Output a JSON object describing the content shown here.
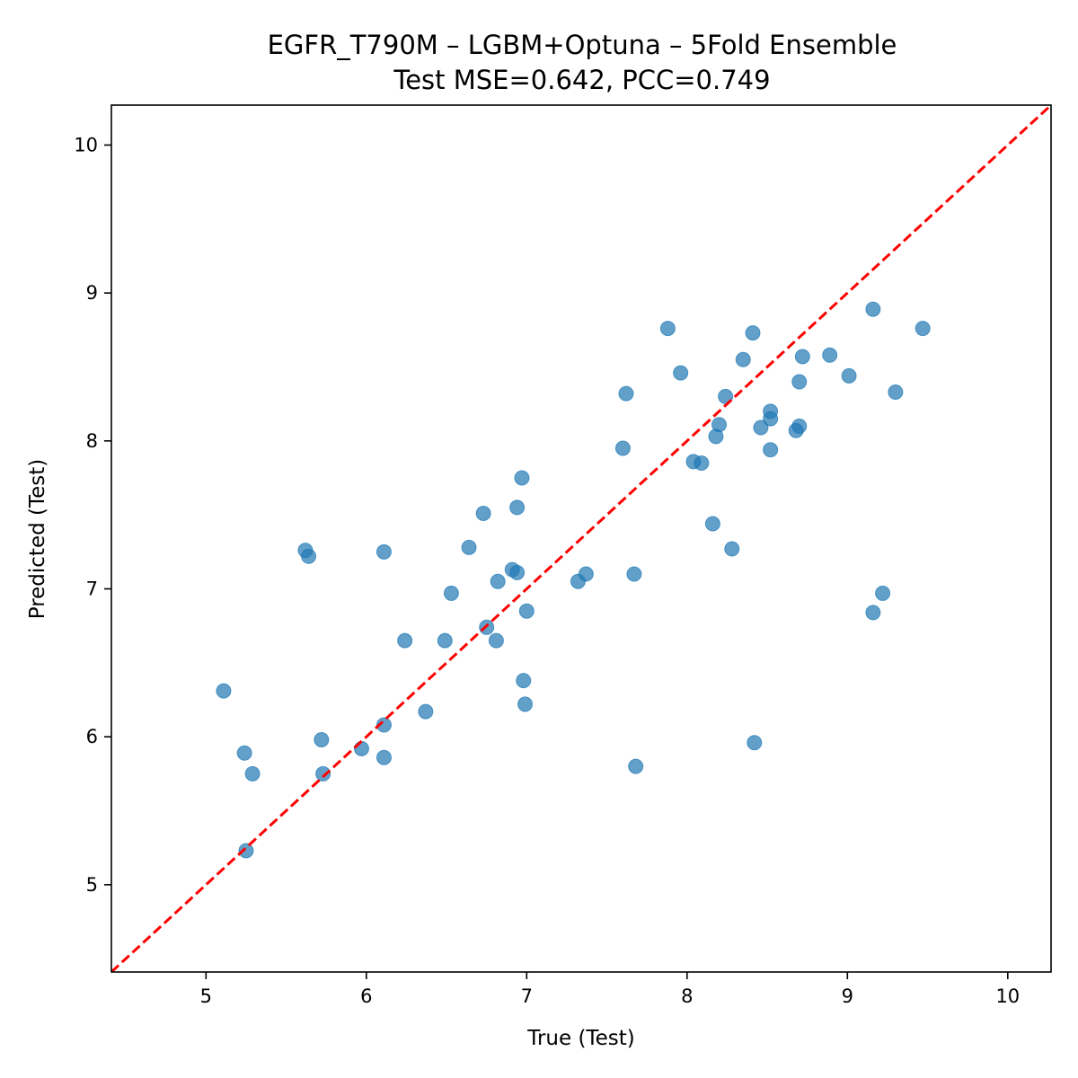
{
  "chart_data": {
    "type": "scatter",
    "title": "EGFR_T790M – LGBM+Optuna – 5Fold Ensemble",
    "subtitle": "Test MSE=0.642, PCC=0.749",
    "xlabel": "True (Test)",
    "ylabel": "Predicted (Test)",
    "xlim": [
      4.41,
      10.27
    ],
    "ylim": [
      4.41,
      10.27
    ],
    "xticks": [
      "5",
      "6",
      "7",
      "8",
      "9",
      "10"
    ],
    "yticks": [
      "5",
      "6",
      "7",
      "8",
      "9",
      "10"
    ],
    "grid": false,
    "point_color": "#1f77b4",
    "reference_line": {
      "style": "dashed",
      "color": "#ff0000",
      "from": [
        4.41,
        4.41
      ],
      "to": [
        10.27,
        10.27
      ]
    },
    "points": [
      {
        "x": 5.11,
        "y": 6.31
      },
      {
        "x": 5.24,
        "y": 5.89
      },
      {
        "x": 5.25,
        "y": 5.23
      },
      {
        "x": 5.29,
        "y": 5.75
      },
      {
        "x": 5.62,
        "y": 7.26
      },
      {
        "x": 5.64,
        "y": 7.22
      },
      {
        "x": 5.72,
        "y": 5.98
      },
      {
        "x": 5.73,
        "y": 5.75
      },
      {
        "x": 5.97,
        "y": 5.92
      },
      {
        "x": 6.11,
        "y": 6.08
      },
      {
        "x": 6.11,
        "y": 5.86
      },
      {
        "x": 6.11,
        "y": 7.25
      },
      {
        "x": 6.24,
        "y": 6.65
      },
      {
        "x": 6.37,
        "y": 6.17
      },
      {
        "x": 6.49,
        "y": 6.65
      },
      {
        "x": 6.53,
        "y": 6.97
      },
      {
        "x": 6.64,
        "y": 7.28
      },
      {
        "x": 6.73,
        "y": 7.51
      },
      {
        "x": 6.75,
        "y": 6.74
      },
      {
        "x": 6.81,
        "y": 6.65
      },
      {
        "x": 6.82,
        "y": 7.05
      },
      {
        "x": 6.91,
        "y": 7.13
      },
      {
        "x": 6.94,
        "y": 7.11
      },
      {
        "x": 6.94,
        "y": 7.55
      },
      {
        "x": 6.97,
        "y": 7.75
      },
      {
        "x": 6.98,
        "y": 6.38
      },
      {
        "x": 6.99,
        "y": 6.22
      },
      {
        "x": 7.0,
        "y": 6.85
      },
      {
        "x": 7.32,
        "y": 7.05
      },
      {
        "x": 7.37,
        "y": 7.1
      },
      {
        "x": 7.6,
        "y": 7.95
      },
      {
        "x": 7.62,
        "y": 8.32
      },
      {
        "x": 7.67,
        "y": 7.1
      },
      {
        "x": 7.68,
        "y": 5.8
      },
      {
        "x": 7.88,
        "y": 8.76
      },
      {
        "x": 7.96,
        "y": 8.46
      },
      {
        "x": 8.04,
        "y": 7.86
      },
      {
        "x": 8.09,
        "y": 7.85
      },
      {
        "x": 8.16,
        "y": 7.44
      },
      {
        "x": 8.18,
        "y": 8.03
      },
      {
        "x": 8.2,
        "y": 8.11
      },
      {
        "x": 8.24,
        "y": 8.3
      },
      {
        "x": 8.28,
        "y": 7.27
      },
      {
        "x": 8.35,
        "y": 8.55
      },
      {
        "x": 8.41,
        "y": 8.73
      },
      {
        "x": 8.42,
        "y": 5.96
      },
      {
        "x": 8.46,
        "y": 8.09
      },
      {
        "x": 8.52,
        "y": 8.2
      },
      {
        "x": 8.52,
        "y": 8.15
      },
      {
        "x": 8.52,
        "y": 7.94
      },
      {
        "x": 8.68,
        "y": 8.07
      },
      {
        "x": 8.7,
        "y": 8.1
      },
      {
        "x": 8.7,
        "y": 8.4
      },
      {
        "x": 8.72,
        "y": 8.57
      },
      {
        "x": 8.89,
        "y": 8.58
      },
      {
        "x": 9.01,
        "y": 8.44
      },
      {
        "x": 9.16,
        "y": 8.89
      },
      {
        "x": 9.16,
        "y": 6.84
      },
      {
        "x": 9.22,
        "y": 6.97
      },
      {
        "x": 9.3,
        "y": 8.33
      },
      {
        "x": 9.47,
        "y": 8.76
      }
    ]
  }
}
